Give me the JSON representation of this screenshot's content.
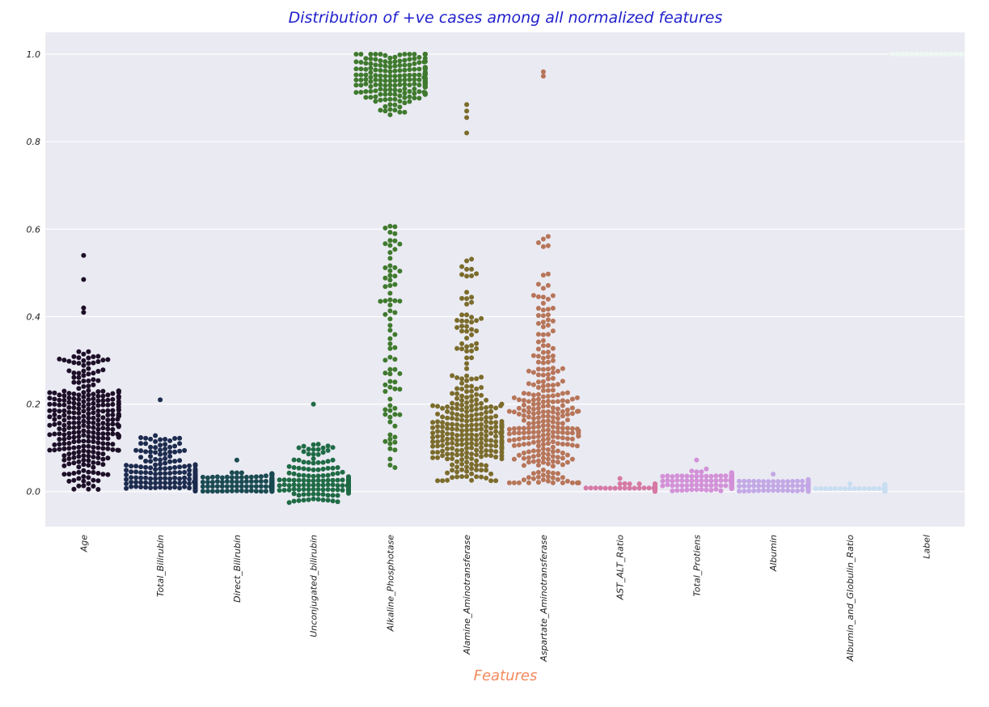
{
  "chart_data": {
    "type": "scatter",
    "subtype": "swarm",
    "title": "Distribution of +ve cases among all normalized features",
    "title_color": "#1f1fcc",
    "xlabel": "Features",
    "xlabel_color": "#f28a5e",
    "ylabel": "",
    "ylim": [
      -0.08,
      1.05
    ],
    "yticks": [
      "0.0",
      "0.2",
      "0.4",
      "0.6",
      "0.8",
      "1.0"
    ],
    "ytick_values": [
      0.0,
      0.2,
      0.4,
      0.6,
      0.8,
      1.0
    ],
    "grid": true,
    "background": "#eaeaf2",
    "categories": [
      "Age",
      "Total_Bilirubin",
      "Direct_Bilirubin",
      "Unconjugated_bilirubin",
      "Alkaline_Phosphotase",
      "Alamine_Aminotransferase",
      "Aspartate_Aminotransferase",
      "AST_ALT_Ratio",
      "Total_Protiens",
      "Albumin",
      "Albumin_and_Globulin_Ratio",
      "Label"
    ],
    "series": [
      {
        "color": "#1d0f28",
        "distribution": {
          "min": 0.005,
          "max": 0.54,
          "center": 0.16,
          "spread": 0.09,
          "outliers": [
            0.54,
            0.485,
            0.42,
            0.41
          ]
        }
      },
      {
        "color": "#1c2b4e",
        "distribution": {
          "min": 0.002,
          "max": 0.21,
          "center": 0.02,
          "spread": 0.025,
          "outliers": [
            0.21,
            0.128,
            0.12
          ]
        }
      },
      {
        "color": "#1a4a52",
        "distribution": {
          "min": 0.001,
          "max": 0.072,
          "center": 0.012,
          "spread": 0.014,
          "outliers": [
            0.072
          ]
        }
      },
      {
        "color": "#1f6b46",
        "distribution": {
          "min": -0.025,
          "max": 0.2,
          "center": 0.015,
          "spread": 0.015,
          "outliers": [
            0.2,
            -0.025
          ]
        }
      },
      {
        "color": "#3f7a2e",
        "distribution": {
          "min": 0.055,
          "max": 1.0,
          "center": 0.95,
          "spread": 0.05,
          "outliers": [
            0.055,
            0.12,
            0.13
          ]
        }
      },
      {
        "color": "#7b6c2c",
        "distribution": {
          "min": 0.025,
          "max": 0.885,
          "center": 0.13,
          "spread": 0.08,
          "outliers": [
            0.885,
            0.87,
            0.855,
            0.82
          ]
        }
      },
      {
        "color": "#b77559",
        "distribution": {
          "min": 0.02,
          "max": 0.96,
          "center": 0.15,
          "spread": 0.12,
          "outliers": [
            0.96,
            0.95
          ]
        }
      },
      {
        "color": "#d679a4",
        "distribution": {
          "min": 0.001,
          "max": 0.03,
          "center": 0.008,
          "spread": 0.006,
          "outliers": [
            0.03
          ]
        }
      },
      {
        "color": "#d391d8",
        "distribution": {
          "min": 0.002,
          "max": 0.072,
          "center": 0.025,
          "spread": 0.015,
          "outliers": [
            0.072
          ]
        }
      },
      {
        "color": "#c3a8e6",
        "distribution": {
          "min": 0.001,
          "max": 0.04,
          "center": 0.013,
          "spread": 0.01,
          "outliers": [
            0.04
          ]
        }
      },
      {
        "color": "#c8def2",
        "distribution": {
          "min": 0.001,
          "max": 0.018,
          "center": 0.007,
          "spread": 0.005,
          "outliers": [
            0.018
          ]
        }
      },
      {
        "color": "#eef8f3",
        "distribution": {
          "min": 1.0,
          "max": 1.0,
          "center": 1.0,
          "spread": 0.0,
          "outliers": []
        }
      }
    ]
  }
}
